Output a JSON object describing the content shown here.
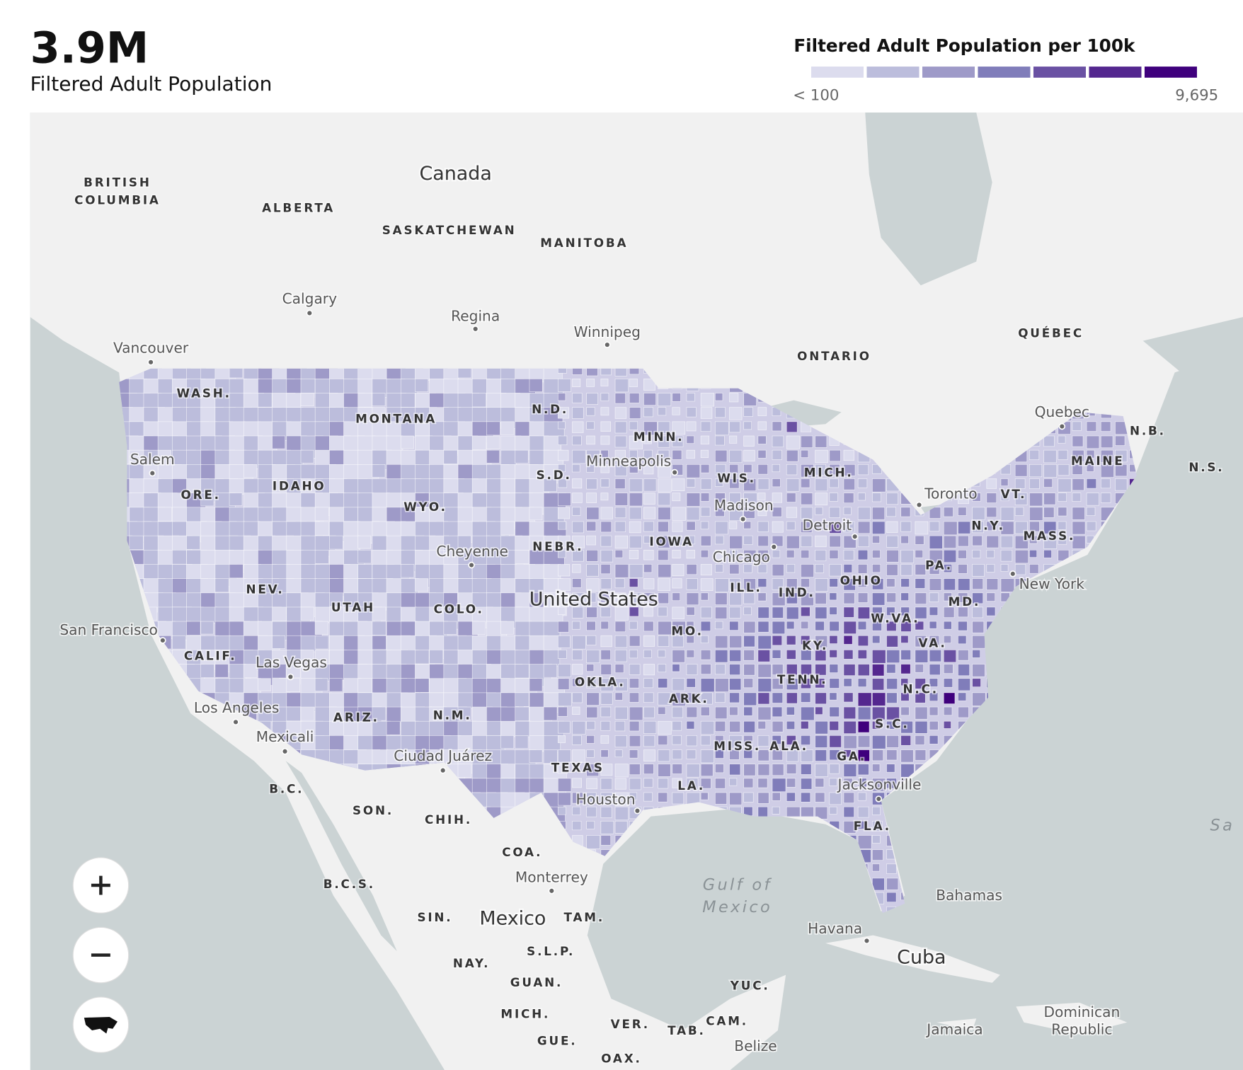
{
  "header": {
    "value": "3.9M",
    "label": "Filtered Adult Population"
  },
  "legend": {
    "title": "Filtered Adult Population per 100k",
    "min_label": "< 100",
    "max_label": "9,695",
    "colors": [
      "#dcdcee",
      "#bcbddc",
      "#9e9ac8",
      "#807dba",
      "#6a51a3",
      "#54278f",
      "#3f007d"
    ]
  },
  "map": {
    "countries": [
      "Canada",
      "United States",
      "Mexico",
      "Cuba"
    ],
    "regions": [
      "BRITISH",
      "COLUMBIA",
      "ALBERTA",
      "SASKATCHEWAN",
      "MANITOBA",
      "ONTARIO",
      "QUÉBEC",
      "N.B.",
      "N.S.",
      "WASH.",
      "MONTANA",
      "N.D.",
      "MINN.",
      "S.D.",
      "WIS.",
      "MICH.",
      "ORE.",
      "IDAHO",
      "WYO.",
      "NEBR.",
      "IOWA",
      "NEV.",
      "UTAH",
      "COLO.",
      "ILL.",
      "IND.",
      "OHIO",
      "PA.",
      "N.Y.",
      "VT.",
      "MAINE",
      "MASS.",
      "MD.",
      "W.VA.",
      "VA.",
      "KY.",
      "MO.",
      "CALIF.",
      "OKLA.",
      "ARK.",
      "TENN.",
      "N.C.",
      "S.C.",
      "ARIZ.",
      "N.M.",
      "MISS.",
      "ALA.",
      "GA.",
      "TEXAS",
      "LA.",
      "FLA.",
      "B.C.",
      "SON.",
      "CHIH.",
      "COA.",
      "B.C.S.",
      "SIN.",
      "TAM.",
      "S.L.P.",
      "NAY.",
      "GUAN.",
      "YUC.",
      "MICH.",
      "VER.",
      "TAB.",
      "CAM.",
      "GUE.",
      "OAX."
    ],
    "cities": [
      "Calgary",
      "Regina",
      "Winnipeg",
      "Vancouver",
      "Quebec",
      "Minneapolis",
      "Salem",
      "Madison",
      "Toronto",
      "Detroit",
      "Cheyenne",
      "Chicago",
      "New York",
      "San Francisco",
      "Las Vegas",
      "Los Angeles",
      "Mexicali",
      "Ciudad Juárez",
      "Houston",
      "Jacksonville",
      "Monterrey",
      "Havana",
      "Bahamas",
      "Jamaica",
      "Dominican",
      "Republic",
      "Belize"
    ],
    "water": [
      "Gulf of",
      "Mexico",
      "Sa"
    ]
  }
}
